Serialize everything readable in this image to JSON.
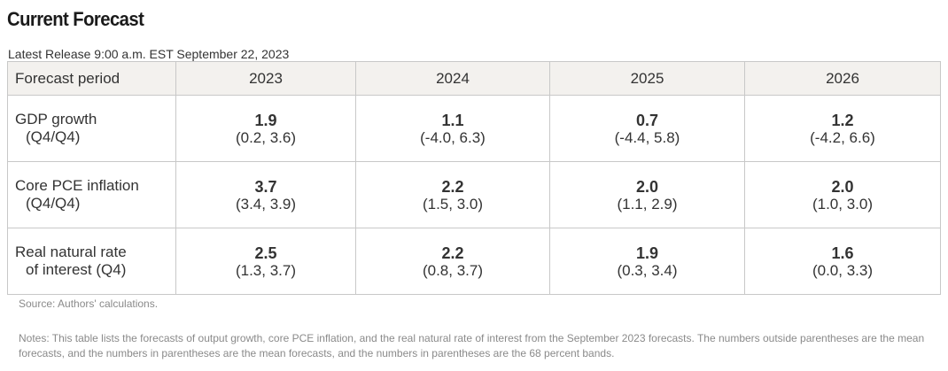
{
  "title": "Current Forecast",
  "release": "Latest Release 9:00 a.m. EST September 22, 2023",
  "table": {
    "header": {
      "label": "Forecast period",
      "years": [
        "2023",
        "2024",
        "2025",
        "2026"
      ]
    },
    "rows": [
      {
        "label_line1": "GDP growth",
        "label_line2": "(Q4/Q4)",
        "cells": [
          {
            "mean": "1.9",
            "band": "(0.2, 3.6)"
          },
          {
            "mean": "1.1",
            "band": "(-4.0, 6.3)"
          },
          {
            "mean": "0.7",
            "band": "(-4.4, 5.8)"
          },
          {
            "mean": "1.2",
            "band": "(-4.2, 6.6)"
          }
        ]
      },
      {
        "label_line1": "Core PCE inflation",
        "label_line2": "(Q4/Q4)",
        "cells": [
          {
            "mean": "3.7",
            "band": "(3.4, 3.9)"
          },
          {
            "mean": "2.2",
            "band": "(1.5, 3.0)"
          },
          {
            "mean": "2.0",
            "band": "(1.1, 2.9)"
          },
          {
            "mean": "2.0",
            "band": "(1.0, 3.0)"
          }
        ]
      },
      {
        "label_line1": "Real natural rate",
        "label_line2": "of interest (Q4)",
        "cells": [
          {
            "mean": "2.5",
            "band": "(1.3, 3.7)"
          },
          {
            "mean": "2.2",
            "band": "(0.8, 3.7)"
          },
          {
            "mean": "1.9",
            "band": "(0.3, 3.4)"
          },
          {
            "mean": "1.6",
            "band": "(0.0, 3.3)"
          }
        ]
      }
    ]
  },
  "source": "Source: Authors' calculations.",
  "notes": "Notes: This table lists the forecasts of output growth, core PCE inflation, and the real natural rate of interest from the September 2023 forecasts. The numbers outside parentheses are the mean forecasts, and the numbers in parentheses are the mean forecasts, and the numbers in parentheses are the 68 percent bands."
}
